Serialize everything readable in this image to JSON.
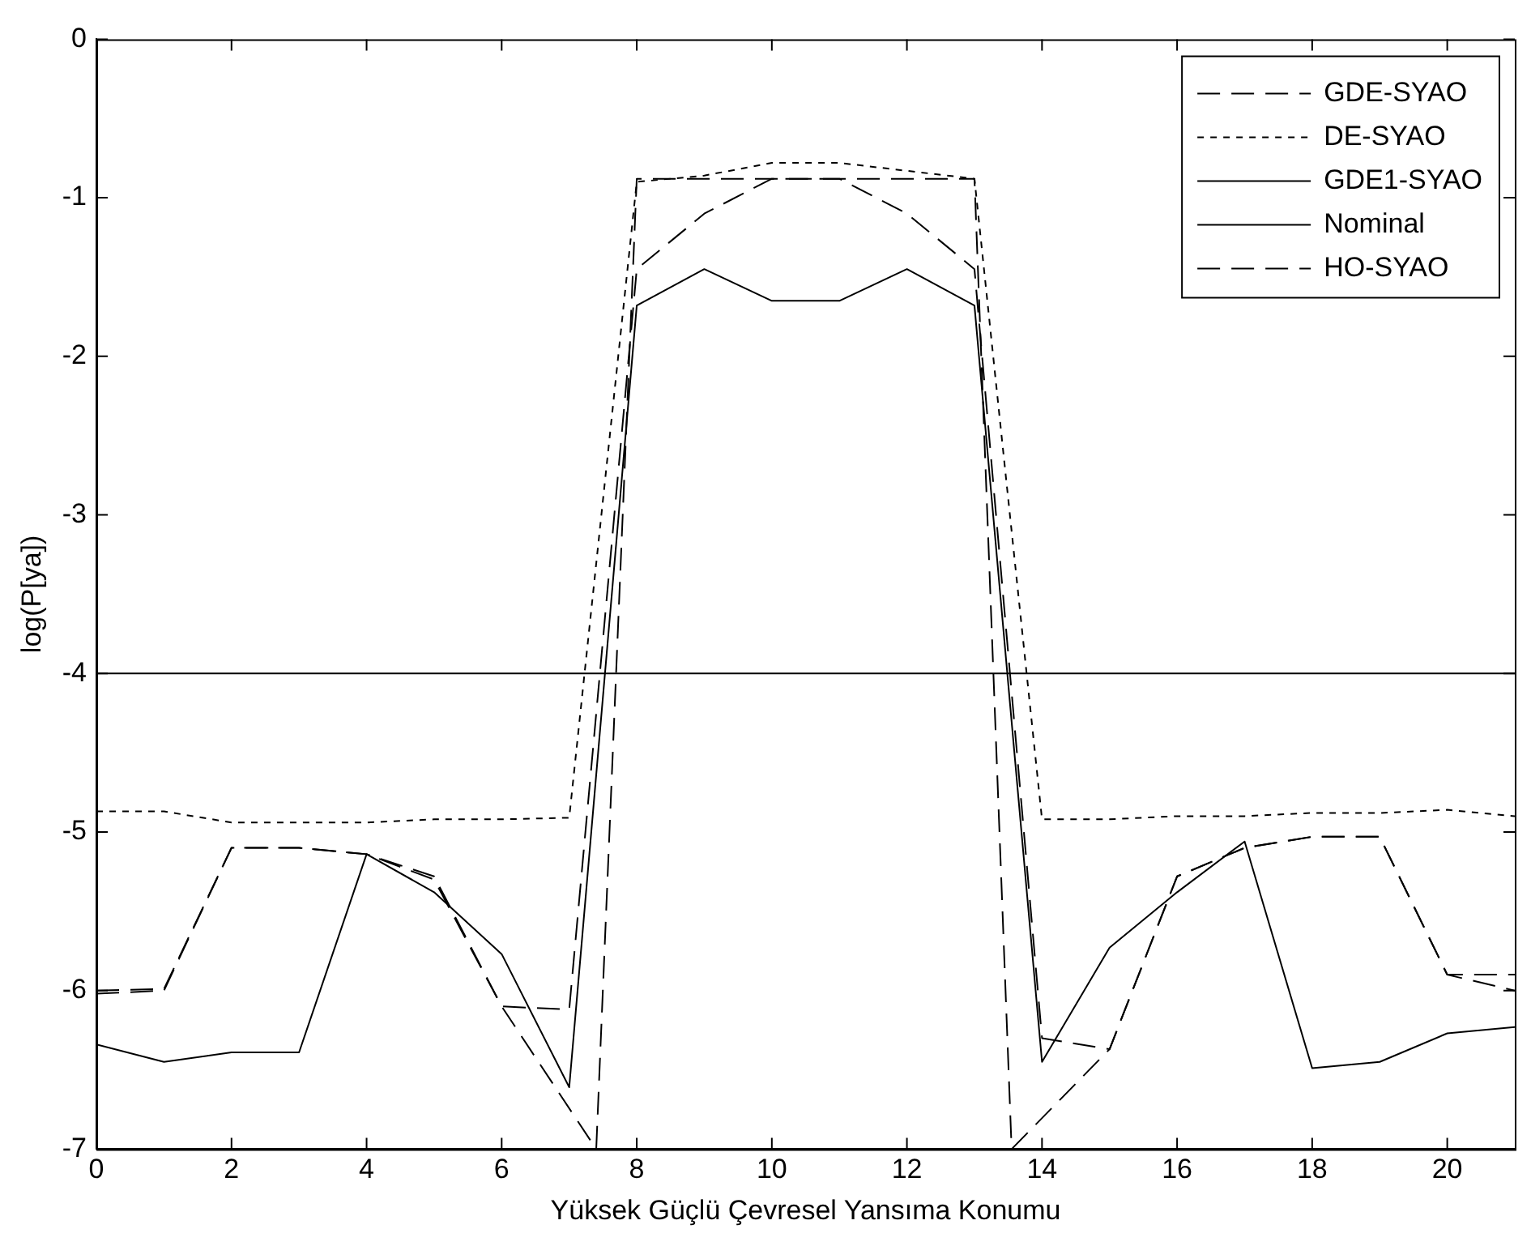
{
  "chart_data": {
    "type": "line",
    "xlabel": "Yüksek Güçlü Çevresel Yansıma Konumu",
    "ylabel": "log(P[ya])",
    "xlim": [
      0,
      21
    ],
    "xticks": [
      0,
      2,
      4,
      6,
      8,
      10,
      12,
      14,
      16,
      18,
      20
    ],
    "ylim": [
      -7,
      0
    ],
    "yticks": [
      -7,
      -6,
      -5,
      -4,
      -3,
      -2,
      -1,
      0
    ],
    "grid": false,
    "legend": "top right",
    "marker": "none",
    "series": [
      {
        "name": "GDE-SYAO",
        "color": "#000000",
        "line_style": "dashed",
        "x": [
          0,
          1,
          2,
          3,
          4,
          5,
          6,
          7,
          8,
          9,
          10,
          11,
          12,
          13,
          14,
          15,
          16,
          17,
          18,
          19,
          20,
          21
        ],
        "values": [
          -6.0,
          -5.99,
          -5.1,
          -5.1,
          -5.14,
          -5.28,
          -6.1,
          -6.12,
          -1.45,
          -1.1,
          -0.88,
          -0.88,
          -1.1,
          -1.45,
          -6.3,
          -6.37,
          -5.28,
          -5.1,
          -5.03,
          -5.03,
          -5.9,
          -5.9
        ]
      },
      {
        "name": "DE-SYAO",
        "color": "#000000",
        "line_style": "dotted",
        "x": [
          0,
          1,
          2,
          3,
          4,
          5,
          6,
          7,
          8,
          9,
          10,
          11,
          12,
          13,
          14,
          15,
          16,
          17,
          18,
          19,
          20,
          21
        ],
        "values": [
          -4.87,
          -4.87,
          -4.94,
          -4.94,
          -4.94,
          -4.92,
          -4.92,
          -4.91,
          -0.9,
          -0.86,
          -0.78,
          -0.78,
          -0.83,
          -0.88,
          -4.92,
          -4.92,
          -4.9,
          -4.9,
          -4.88,
          -4.88,
          -4.86,
          -4.9
        ]
      },
      {
        "name": "GDE1-SYAO",
        "color": "#000000",
        "line_style": "solid",
        "x": [
          0,
          1,
          2,
          3,
          4,
          5,
          6,
          7,
          8,
          9,
          10,
          11,
          12,
          13,
          14,
          15,
          16,
          17,
          18,
          19,
          20,
          21
        ],
        "values": [
          -6.34,
          -6.45,
          -6.39,
          -6.39,
          -5.14,
          -5.38,
          -5.77,
          -6.61,
          -1.68,
          -1.45,
          -1.65,
          -1.65,
          -1.45,
          -1.68,
          -6.45,
          -5.73,
          -5.38,
          -5.06,
          -6.49,
          -6.45,
          -6.27,
          -6.23
        ]
      },
      {
        "name": "Nominal",
        "color": "#000000",
        "line_style": "solid",
        "x": [
          0,
          21
        ],
        "values": [
          -4,
          -4
        ]
      },
      {
        "name": "HO-SYAO",
        "color": "#000000",
        "line_style": "dashed",
        "x": [
          0,
          1,
          2,
          3,
          4,
          5,
          6,
          7.4,
          8,
          9,
          10,
          11,
          12,
          13,
          13.55,
          15,
          16,
          17,
          18,
          19,
          20,
          21
        ],
        "values": [
          -6.02,
          -6.0,
          -5.1,
          -5.1,
          -5.14,
          -5.3,
          -6.1,
          -7,
          -0.88,
          -0.88,
          -0.88,
          -0.88,
          -0.88,
          -0.88,
          -7,
          -6.37,
          -5.28,
          -5.1,
          -5.03,
          -5.03,
          -5.9,
          -6.0
        ]
      }
    ]
  }
}
